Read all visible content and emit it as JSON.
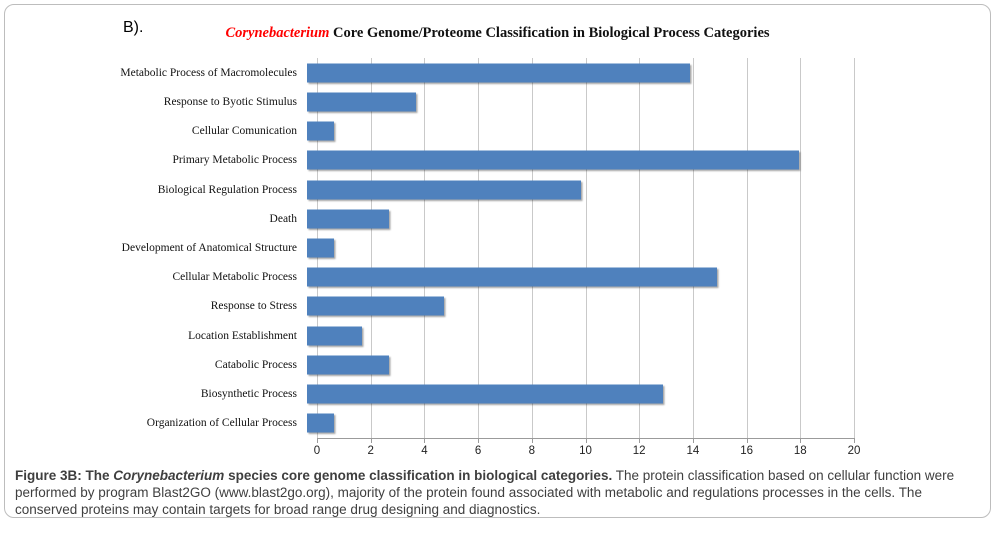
{
  "figure_label": "B).",
  "chart_data": {
    "type": "bar",
    "orientation": "horizontal",
    "title": "Corynebacterium Core Genome/Proteome Classification in Biological Process Categories",
    "title_italic": "Corynebacterium",
    "title_rest": " Core Genome/Proteome Classification in Biological Process Categories",
    "categories": [
      "Metabolic Process of Macromolecules",
      "Response to Byotic Stimulus",
      "Cellular Comunication",
      "Primary Metabolic Process",
      "Biological Regulation Process",
      "Death",
      "Development of Anatomical Structure",
      "Cellular Metabolic Process",
      "Response to Stress",
      "Location Establishment",
      "Catabolic Process",
      "Biosynthetic Process",
      "Organization of Cellular Process"
    ],
    "values": [
      14,
      4,
      1,
      18,
      10,
      3,
      1,
      15,
      5,
      2,
      3,
      13,
      1
    ],
    "xlabel": "",
    "ylabel": "",
    "xlim": [
      0,
      20
    ],
    "x_ticks": [
      0,
      2,
      4,
      6,
      8,
      10,
      12,
      14,
      16,
      18,
      20
    ],
    "grid": true,
    "legend": false,
    "bar_color": "#4F81BD"
  },
  "caption": {
    "bold_prefix": "Figure 3B: The ",
    "bold_italic": "Corynebacterium",
    "bold_suffix": " species core genome classification in biological categories.",
    "body": " The protein classification based on cellular function were performed by program Blast2GO (www.blast2go.org), majority of the protein found associated with metabolic and regulations processes in the cells. The conserved proteins may contain targets for broad range drug designing and diagnostics."
  },
  "colors": {
    "bar": "#4F81BD",
    "title_accent": "#FF0000",
    "gridline": "#C9C9C9",
    "axis": "#9B9B9B",
    "border": "#BDBDBD",
    "caption_text": "#3F3F3F"
  }
}
